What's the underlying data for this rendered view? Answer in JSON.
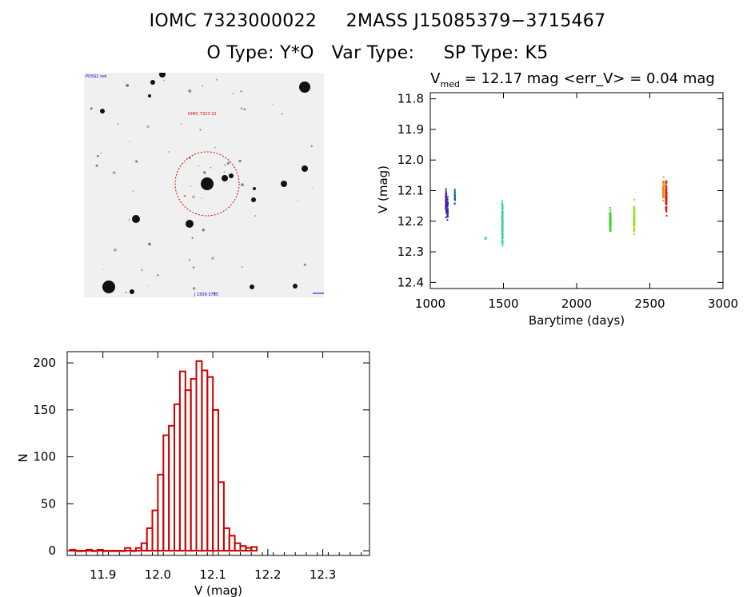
{
  "header": {
    "id_iomc": "IOMC 7323000022",
    "id_2mass": "2MASS J15085379−3715467",
    "o_type": "O Type: Y*O",
    "var_type": "Var Type:",
    "sp_type": "SP Type: K5"
  },
  "image_panel": {
    "corner_text": "POSS2 red",
    "marker_text": "IOMC 7323 22",
    "bottom_text": "J 1509 3715",
    "marker_color": "#e00000",
    "legend_color": "#0000cc"
  },
  "chart_data": [
    {
      "type": "scatter",
      "title_prefix": "V",
      "title_subscript": "med",
      "title_suffix": " = 12.17 mag <err_V> = 0.04 mag",
      "xlabel": "Barytime (days)",
      "ylabel": "V (mag)",
      "xlim": [
        1000,
        3000
      ],
      "ylim": [
        12.42,
        11.78
      ],
      "y_inverted": true,
      "xticks": [
        1000,
        1500,
        2000,
        2500,
        3000
      ],
      "yticks": [
        11.8,
        11.9,
        12.0,
        12.1,
        12.2,
        12.3,
        12.4
      ],
      "ytick_labels": [
        "11.8",
        "11.9",
        "12.0",
        "12.1",
        "12.2",
        "12.3",
        "12.4"
      ],
      "grid": false,
      "series": [
        {
          "x_center": 1108,
          "x_spread": 5,
          "y_center": 12.14,
          "y_spread": 0.06,
          "count": 60,
          "color": "#5a1a9a"
        },
        {
          "x_center": 1118,
          "x_spread": 4,
          "y_center": 12.16,
          "y_spread": 0.05,
          "count": 40,
          "color": "#2a2ab0"
        },
        {
          "x_center": 1168,
          "x_spread": 4,
          "y_center": 12.12,
          "y_spread": 0.05,
          "count": 25,
          "color": "#1a6aa0"
        },
        {
          "x_center": 1378,
          "x_spread": 5,
          "y_center": 12.255,
          "y_spread": 0.005,
          "count": 6,
          "color": "#20c8d8"
        },
        {
          "x_center": 1493,
          "x_spread": 5,
          "y_center": 12.21,
          "y_spread": 0.09,
          "count": 140,
          "color": "#28d890"
        },
        {
          "x_center": 2230,
          "x_spread": 6,
          "y_center": 12.2,
          "y_spread": 0.05,
          "count": 120,
          "color": "#40d030"
        },
        {
          "x_center": 2393,
          "x_spread": 5,
          "y_center": 12.19,
          "y_spread": 0.07,
          "count": 80,
          "color": "#98e020"
        },
        {
          "x_center": 2592,
          "x_spread": 6,
          "y_center": 12.1,
          "y_spread": 0.05,
          "count": 60,
          "color": "#f08c10"
        },
        {
          "x_center": 2612,
          "x_spread": 6,
          "y_center": 12.12,
          "y_spread": 0.07,
          "count": 110,
          "color": "#d81a10"
        }
      ]
    },
    {
      "type": "bar",
      "style": "step-histogram",
      "xlabel": "V (mag)",
      "ylabel": "N",
      "xlim": [
        11.835,
        12.385
      ],
      "ylim": [
        -5,
        212
      ],
      "xticks": [
        11.9,
        12.0,
        12.1,
        12.2,
        12.3
      ],
      "xtick_labels": [
        "11.9",
        "12.0",
        "12.1",
        "12.2",
        "12.3"
      ],
      "yticks": [
        0,
        50,
        100,
        150,
        200
      ],
      "ytick_labels": [
        "0",
        "50",
        "100",
        "150",
        "200"
      ],
      "bin_start": 11.84,
      "bin_width": 0.01,
      "values": [
        1,
        0,
        0,
        1,
        0,
        1,
        0,
        0,
        0,
        0,
        3,
        0,
        3,
        8,
        24,
        43,
        81,
        123,
        133,
        156,
        191,
        171,
        183,
        202,
        192,
        185,
        150,
        73,
        24,
        16,
        8,
        5,
        3,
        4
      ],
      "color": "#cc0000"
    }
  ]
}
